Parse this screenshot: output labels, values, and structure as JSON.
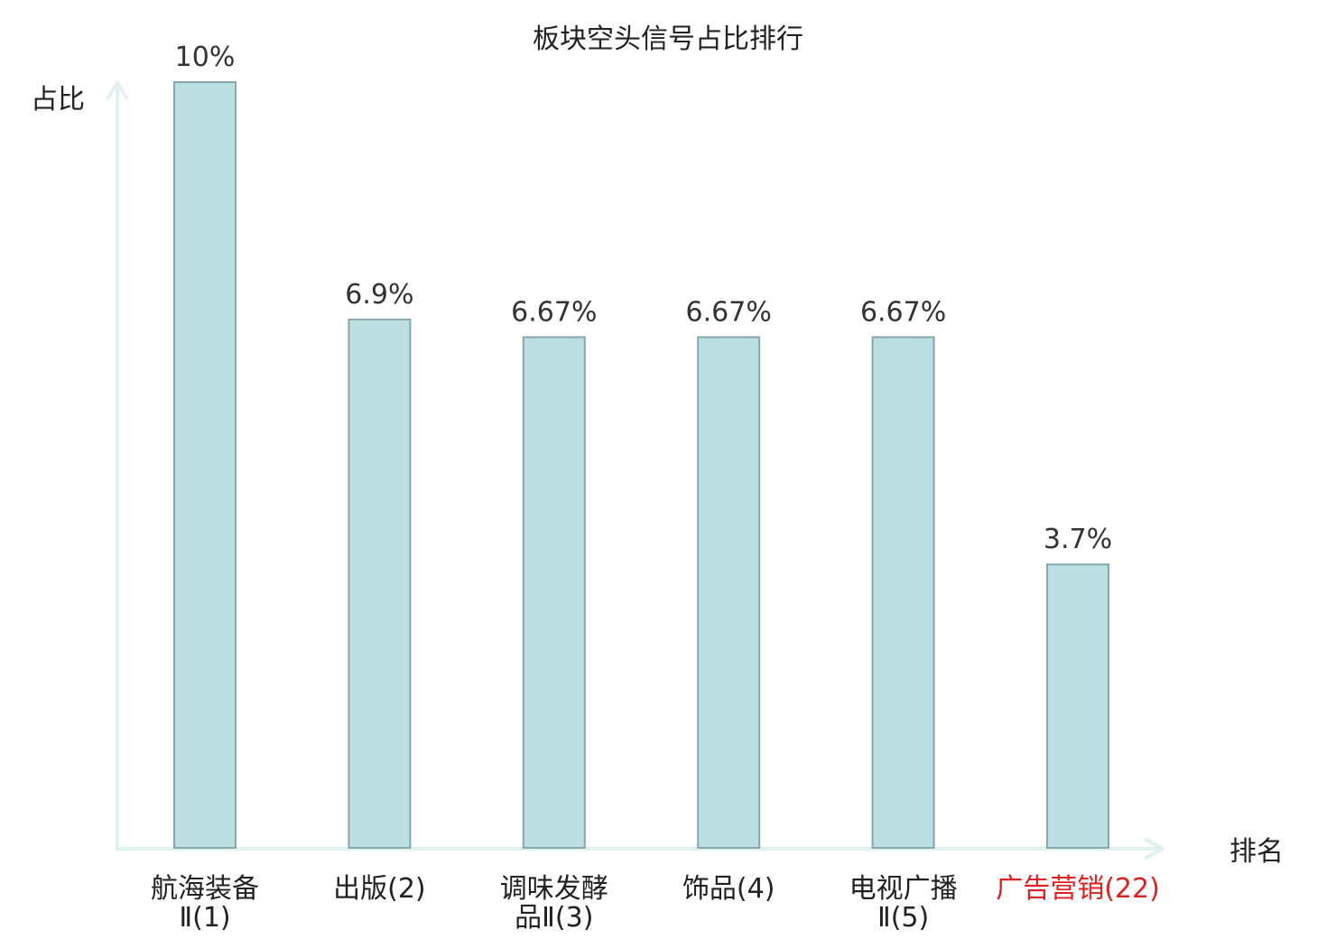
{
  "chart_data": {
    "type": "bar",
    "title": "板块空头信号占比排行",
    "xlabel": "排名",
    "ylabel": "占比",
    "categories": [
      [
        "航海装备",
        "Ⅱ(1)"
      ],
      [
        "出版(2)"
      ],
      [
        "调味发酵",
        "品Ⅱ(3)"
      ],
      [
        "饰品(4)"
      ],
      [
        "电视广播",
        "Ⅱ(5)"
      ],
      [
        "广告营销(22)"
      ]
    ],
    "values": [
      10,
      6.9,
      6.67,
      6.67,
      6.67,
      3.7
    ],
    "value_labels": [
      "10%",
      "6.9%",
      "6.67%",
      "6.67%",
      "6.67%",
      "3.7%"
    ],
    "highlight_index": 5,
    "ylim": [
      0,
      10
    ],
    "grid": false,
    "colors": {
      "bar_fill": "#bce0e2",
      "bar_stroke": "#86a8ac",
      "axis": "#dff2ef",
      "text": "#222222",
      "value_text": "#333333",
      "highlight": "#e02020"
    }
  }
}
